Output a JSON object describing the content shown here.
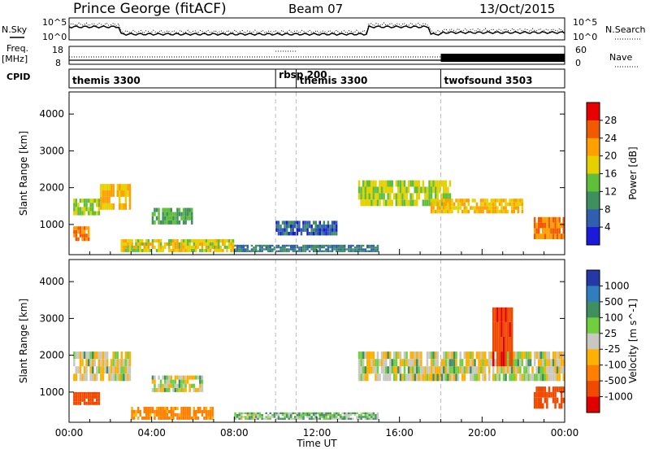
{
  "header": {
    "site": "Prince George (fitACF)",
    "beam": "Beam 07",
    "date": "13/Oct/2015"
  },
  "noise_panel": {
    "left_label": "N.Sky",
    "right_label": "N.Search",
    "tick_top_left": "10^5",
    "tick_bottom_left": "10^0",
    "tick_top_right": "10^5",
    "tick_bottom_right": "10^0"
  },
  "freq_panel": {
    "left_label_1": "Freq.",
    "left_label_2": "[MHz]",
    "right_label": "Nave",
    "left_ticks": [
      "18",
      "8"
    ],
    "right_ticks": [
      "60",
      "0"
    ]
  },
  "cpid_panel": {
    "label": "CPID",
    "segments": [
      {
        "name": "themis 3300",
        "start_h": 0
      },
      {
        "name": "rbsp 200",
        "start_h": 10
      },
      {
        "name": "themis 3300",
        "start_h": 11
      },
      {
        "name": "twofsound 3503",
        "start_h": 18
      }
    ]
  },
  "power_panel": {
    "ylabel": "Slant Range [km]",
    "cbar_label": "Power [dB]",
    "cbar_ticks": [
      "28",
      "24",
      "20",
      "16",
      "12",
      "8",
      "4"
    ],
    "cbar_colors": [
      "#e80000",
      "#f25a00",
      "#ff9f00",
      "#e6d000",
      "#5fbf3a",
      "#3f8f5f",
      "#2f5fae",
      "#1a1ad8"
    ]
  },
  "velocity_panel": {
    "ylabel": "Slant Range [km]",
    "cbar_label": "Velocity [m s^-1]",
    "cbar_ticks": [
      "1000",
      "500",
      "100",
      "25",
      "-25",
      "-100",
      "-500",
      "-1000"
    ],
    "cbar_colors": [
      "#2438a8",
      "#2f7fbf",
      "#3f8f5f",
      "#6fcf3f",
      "#c8c8c0",
      "#ffb000",
      "#ff8000",
      "#f04a00",
      "#e00000"
    ]
  },
  "chart_data": {
    "type": "heatmap",
    "x_axis": {
      "label": "Time UT",
      "ticks": [
        "00:00",
        "04:00",
        "08:00",
        "12:00",
        "16:00",
        "20:00",
        "00:00"
      ],
      "range_hours": [
        0,
        24
      ]
    },
    "y_axis": {
      "label": "Slant Range [km]",
      "ticks": [
        "1000",
        "2000",
        "3000",
        "4000"
      ],
      "range_km": [
        180,
        4600
      ]
    },
    "mode_change_times_h": [
      10,
      11,
      18
    ],
    "power_features": [
      {
        "t": [
          0.2,
          1.0
        ],
        "r": [
          550,
          950
        ],
        "db": 26
      },
      {
        "t": [
          0.2,
          1.5
        ],
        "r": [
          1250,
          1700
        ],
        "db": 18
      },
      {
        "t": [
          1.5,
          3.0
        ],
        "r": [
          1400,
          2100
        ],
        "db": 22
      },
      {
        "t": [
          2.5,
          8.0
        ],
        "r": [
          250,
          600
        ],
        "db": 20
      },
      {
        "t": [
          4.0,
          6.0
        ],
        "r": [
          1000,
          1450
        ],
        "db": 14
      },
      {
        "t": [
          8.0,
          15.0
        ],
        "r": [
          250,
          450
        ],
        "db": 10
      },
      {
        "t": [
          10.0,
          13.0
        ],
        "r": [
          700,
          1100
        ],
        "db": 8
      },
      {
        "t": [
          14.0,
          18.5
        ],
        "r": [
          1500,
          2200
        ],
        "db": 18
      },
      {
        "t": [
          17.5,
          22.0
        ],
        "r": [
          1300,
          1700
        ],
        "db": 22
      },
      {
        "t": [
          22.5,
          24.0
        ],
        "r": [
          600,
          1200
        ],
        "db": 26
      }
    ],
    "velocity_features": [
      {
        "t": [
          0.2,
          1.5
        ],
        "r": [
          650,
          1000
        ],
        "v": -400
      },
      {
        "t": [
          0.2,
          3.0
        ],
        "r": [
          1300,
          2100
        ],
        "v": 0
      },
      {
        "t": [
          3.0,
          7.0
        ],
        "r": [
          250,
          600
        ],
        "v": -150
      },
      {
        "t": [
          4.0,
          6.5
        ],
        "r": [
          1000,
          1450
        ],
        "v": 0
      },
      {
        "t": [
          8.0,
          15.0
        ],
        "r": [
          250,
          450
        ],
        "v": 50
      },
      {
        "t": [
          14.0,
          24.0
        ],
        "r": [
          1300,
          2100
        ],
        "v": 0
      },
      {
        "t": [
          20.5,
          21.5
        ],
        "r": [
          1700,
          3300
        ],
        "v": -700
      },
      {
        "t": [
          22.5,
          24.0
        ],
        "r": [
          550,
          1150
        ],
        "v": -600
      }
    ]
  }
}
